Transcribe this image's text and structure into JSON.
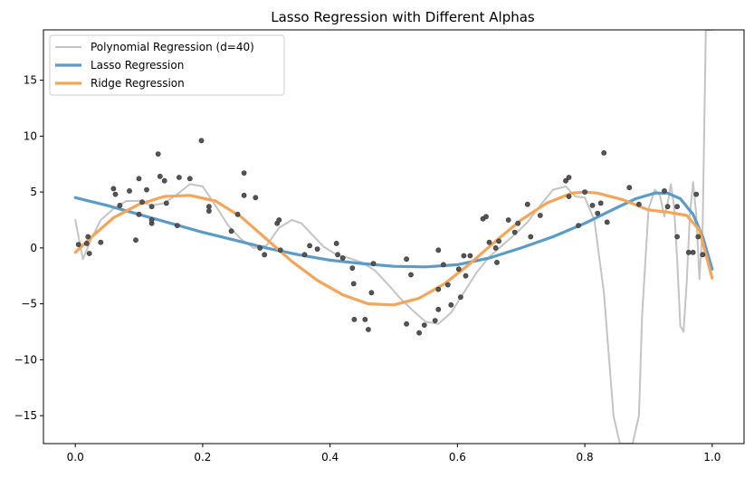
{
  "chart_data": {
    "type": "line",
    "title": "Lasso Regression with Different Alphas",
    "xlabel": "",
    "ylabel": "",
    "xlim": [
      -0.05,
      1.05
    ],
    "ylim": [
      -17.5,
      19.5
    ],
    "xticks": [
      0.0,
      0.2,
      0.4,
      0.6,
      0.8,
      1.0
    ],
    "xtick_labels": [
      "0.0",
      "0.2",
      "0.4",
      "0.6",
      "0.8",
      "1.0"
    ],
    "yticks": [
      -15,
      -10,
      -5,
      0,
      5,
      10,
      15
    ],
    "ytick_labels": [
      "−15",
      "−10",
      "−5",
      "0",
      "5",
      "10",
      "15"
    ],
    "grid": false,
    "legend_position": "top-left",
    "scatter": {
      "color": "#555555",
      "points": [
        [
          0.005,
          0.3
        ],
        [
          0.018,
          0.4
        ],
        [
          0.02,
          1.0
        ],
        [
          0.022,
          -0.5
        ],
        [
          0.04,
          0.5
        ],
        [
          0.06,
          5.3
        ],
        [
          0.063,
          4.8
        ],
        [
          0.07,
          3.8
        ],
        [
          0.085,
          5.1
        ],
        [
          0.095,
          0.7
        ],
        [
          0.1,
          3.0
        ],
        [
          0.1,
          6.2
        ],
        [
          0.105,
          4.1
        ],
        [
          0.112,
          5.2
        ],
        [
          0.12,
          3.7
        ],
        [
          0.12,
          2.2
        ],
        [
          0.12,
          2.5
        ],
        [
          0.13,
          8.4
        ],
        [
          0.133,
          6.4
        ],
        [
          0.14,
          6.0
        ],
        [
          0.143,
          4.0
        ],
        [
          0.16,
          2.0
        ],
        [
          0.163,
          6.3
        ],
        [
          0.18,
          6.2
        ],
        [
          0.198,
          9.6
        ],
        [
          0.21,
          3.7
        ],
        [
          0.21,
          3.3
        ],
        [
          0.245,
          1.5
        ],
        [
          0.255,
          3.0
        ],
        [
          0.265,
          6.7
        ],
        [
          0.265,
          4.7
        ],
        [
          0.283,
          4.5
        ],
        [
          0.29,
          0.0
        ],
        [
          0.297,
          -0.6
        ],
        [
          0.317,
          2.2
        ],
        [
          0.32,
          2.5
        ],
        [
          0.322,
          -0.2
        ],
        [
          0.36,
          -0.6
        ],
        [
          0.368,
          0.2
        ],
        [
          0.38,
          -0.1
        ],
        [
          0.41,
          0.4
        ],
        [
          0.412,
          -0.6
        ],
        [
          0.42,
          -0.9
        ],
        [
          0.435,
          -1.8
        ],
        [
          0.437,
          -3.2
        ],
        [
          0.438,
          -6.4
        ],
        [
          0.455,
          -6.4
        ],
        [
          0.46,
          -7.3
        ],
        [
          0.465,
          -4.0
        ],
        [
          0.468,
          -1.4
        ],
        [
          0.52,
          -1.0
        ],
        [
          0.52,
          -6.8
        ],
        [
          0.527,
          -2.4
        ],
        [
          0.54,
          -7.6
        ],
        [
          0.548,
          -6.9
        ],
        [
          0.565,
          -6.5
        ],
        [
          0.57,
          -3.7
        ],
        [
          0.57,
          -0.2
        ],
        [
          0.57,
          -5.5
        ],
        [
          0.578,
          -1.5
        ],
        [
          0.585,
          -3.3
        ],
        [
          0.59,
          -5.1
        ],
        [
          0.602,
          -1.9
        ],
        [
          0.605,
          -4.4
        ],
        [
          0.61,
          -0.7
        ],
        [
          0.613,
          -2.5
        ],
        [
          0.62,
          -0.7
        ],
        [
          0.64,
          2.6
        ],
        [
          0.645,
          2.8
        ],
        [
          0.65,
          0.5
        ],
        [
          0.66,
          0.0
        ],
        [
          0.662,
          -1.3
        ],
        [
          0.665,
          0.6
        ],
        [
          0.68,
          2.5
        ],
        [
          0.69,
          1.4
        ],
        [
          0.695,
          2.2
        ],
        [
          0.71,
          3.9
        ],
        [
          0.715,
          1.0
        ],
        [
          0.73,
          2.9
        ],
        [
          0.77,
          6.0
        ],
        [
          0.775,
          6.3
        ],
        [
          0.775,
          4.6
        ],
        [
          0.79,
          2.0
        ],
        [
          0.8,
          5.0
        ],
        [
          0.812,
          3.8
        ],
        [
          0.82,
          3.1
        ],
        [
          0.825,
          4.0
        ],
        [
          0.83,
          8.5
        ],
        [
          0.835,
          2.3
        ],
        [
          0.87,
          5.4
        ],
        [
          0.885,
          3.9
        ],
        [
          0.925,
          5.1
        ],
        [
          0.93,
          3.7
        ],
        [
          0.945,
          3.7
        ],
        [
          0.945,
          1.0
        ],
        [
          0.963,
          -0.4
        ],
        [
          0.97,
          -0.4
        ],
        [
          0.975,
          4.8
        ],
        [
          0.978,
          1.0
        ],
        [
          0.985,
          -0.6
        ]
      ]
    },
    "series": [
      {
        "name": "Polynomial Regression (d=40)",
        "color": "#c4c4c4",
        "x": [
          0.0,
          0.012,
          0.025,
          0.04,
          0.06,
          0.08,
          0.1,
          0.12,
          0.14,
          0.16,
          0.18,
          0.2,
          0.22,
          0.24,
          0.26,
          0.28,
          0.3,
          0.32,
          0.34,
          0.355,
          0.37,
          0.39,
          0.41,
          0.43,
          0.45,
          0.47,
          0.49,
          0.51,
          0.53,
          0.55,
          0.57,
          0.59,
          0.61,
          0.63,
          0.65,
          0.67,
          0.69,
          0.71,
          0.73,
          0.75,
          0.77,
          0.785,
          0.8,
          0.815,
          0.83,
          0.845,
          0.855,
          0.865,
          0.875,
          0.885,
          0.89,
          0.9,
          0.91,
          0.918,
          0.925,
          0.93,
          0.935,
          0.94,
          0.945,
          0.95,
          0.955,
          0.96,
          0.965,
          0.97,
          0.975,
          0.98,
          0.985,
          0.99,
          0.995,
          1.0
        ],
        "y": [
          2.5,
          -1.0,
          0.8,
          2.5,
          3.5,
          4.2,
          4.2,
          3.8,
          4.0,
          4.8,
          5.7,
          5.5,
          3.8,
          2.0,
          0.8,
          0.0,
          0.2,
          1.8,
          2.5,
          2.2,
          1.3,
          0.1,
          -0.6,
          -0.9,
          -1.3,
          -2.0,
          -3.2,
          -4.5,
          -5.6,
          -6.6,
          -6.8,
          -5.8,
          -4.0,
          -2.2,
          -0.8,
          0.2,
          1.2,
          2.3,
          3.8,
          5.2,
          5.5,
          4.6,
          4.5,
          2.5,
          -4.0,
          -15.0,
          -17.5,
          -17.5,
          -17.5,
          -15.0,
          -6.0,
          3.5,
          5.2,
          4.7,
          2.8,
          4.0,
          5.7,
          3.8,
          -1.0,
          -7.0,
          -7.5,
          -3.0,
          3.0,
          5.9,
          3.0,
          -2.8,
          2.0,
          19.5,
          19.5,
          19.5
        ]
      },
      {
        "name": "Lasso Regression",
        "color": "#5b9bc7",
        "x": [
          0.0,
          0.05,
          0.1,
          0.15,
          0.2,
          0.25,
          0.3,
          0.35,
          0.4,
          0.45,
          0.5,
          0.55,
          0.6,
          0.65,
          0.7,
          0.75,
          0.8,
          0.85,
          0.88,
          0.91,
          0.93,
          0.95,
          0.97,
          0.985,
          1.0
        ],
        "y": [
          4.5,
          3.8,
          3.0,
          2.2,
          1.4,
          0.7,
          0.0,
          -0.6,
          -1.1,
          -1.4,
          -1.65,
          -1.7,
          -1.5,
          -0.9,
          0.0,
          1.0,
          2.2,
          3.6,
          4.4,
          4.9,
          4.9,
          4.4,
          3.0,
          1.0,
          -1.9
        ]
      },
      {
        "name": "Ridge Regression",
        "color": "#f5a55a",
        "x": [
          0.0,
          0.03,
          0.06,
          0.1,
          0.14,
          0.18,
          0.22,
          0.26,
          0.3,
          0.34,
          0.38,
          0.42,
          0.46,
          0.5,
          0.54,
          0.58,
          0.62,
          0.66,
          0.7,
          0.74,
          0.78,
          0.8,
          0.82,
          0.86,
          0.9,
          0.93,
          0.96,
          0.98,
          1.0
        ],
        "y": [
          -0.4,
          1.2,
          2.7,
          3.9,
          4.6,
          4.7,
          4.2,
          2.8,
          0.8,
          -1.2,
          -2.9,
          -4.2,
          -5.0,
          -5.1,
          -4.5,
          -3.2,
          -1.4,
          0.6,
          2.5,
          4.0,
          4.9,
          5.0,
          4.9,
          4.3,
          3.4,
          3.2,
          2.9,
          1.6,
          -2.7
        ]
      }
    ]
  }
}
